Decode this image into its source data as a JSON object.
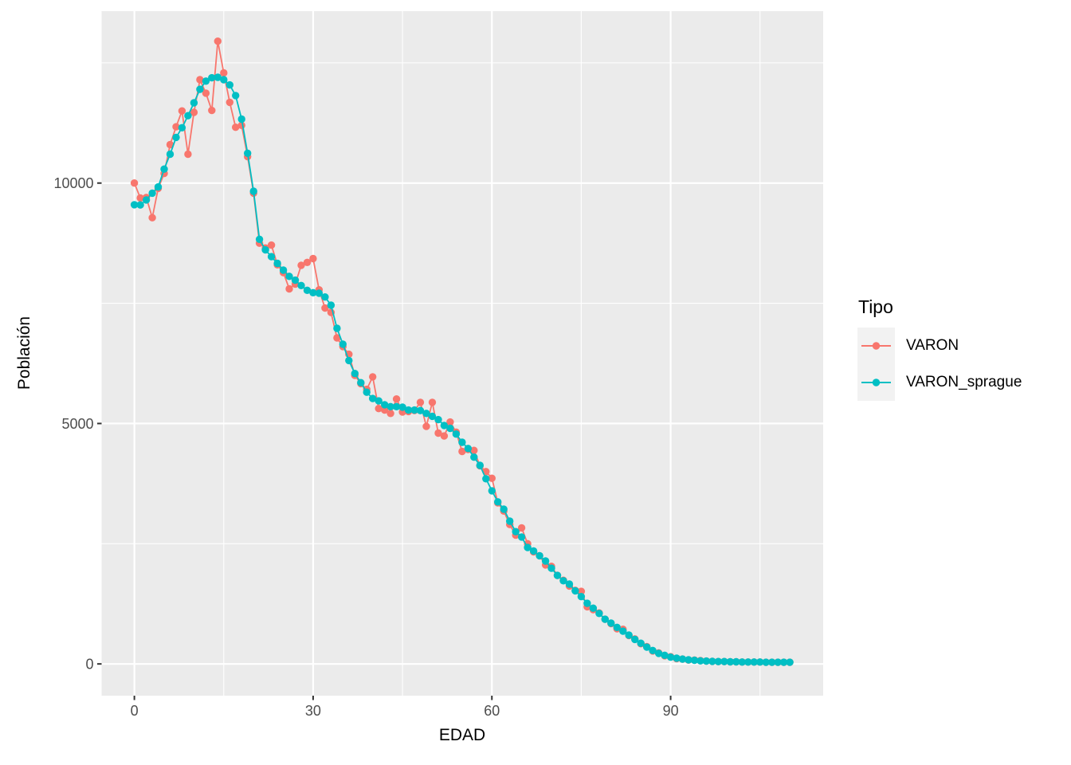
{
  "style": {
    "page_bg": "#FFFFFF",
    "panel_bg": "#EBEBEB",
    "grid_color": "#FFFFFF",
    "tick_color": "#333333",
    "tick_label_color": "#4D4D4D",
    "axis_title_color": "#000000",
    "legend_key_bg": "#F2F2F2"
  },
  "legend": {
    "title": "Tipo",
    "entries": [
      {
        "label": "VARON",
        "color": "#F8766D"
      },
      {
        "label": "VARON_sprague",
        "color": "#00BFC4"
      }
    ]
  },
  "chart_data": {
    "type": "line",
    "title": "",
    "xlabel": "EDAD",
    "ylabel": "Población",
    "legend_title": "Tipo",
    "legend_position": "right",
    "grid": true,
    "x_ticks": [
      0,
      30,
      60,
      90
    ],
    "x_minor_ticks": [
      15,
      45,
      75,
      105
    ],
    "y_ticks": [
      0,
      5000,
      10000
    ],
    "y_minor_ticks": [
      2500,
      7500,
      12500
    ],
    "xlim": [
      -5.5,
      115.6
    ],
    "ylim": [
      -660,
      13575
    ],
    "x": [
      0,
      1,
      2,
      3,
      4,
      5,
      6,
      7,
      8,
      9,
      10,
      11,
      12,
      13,
      14,
      15,
      16,
      17,
      18,
      19,
      20,
      21,
      22,
      23,
      24,
      25,
      26,
      27,
      28,
      29,
      30,
      31,
      32,
      33,
      34,
      35,
      36,
      37,
      38,
      39,
      40,
      41,
      42,
      43,
      44,
      45,
      46,
      47,
      48,
      49,
      50,
      51,
      52,
      53,
      54,
      55,
      56,
      57,
      58,
      59,
      60,
      61,
      62,
      63,
      64,
      65,
      66,
      67,
      68,
      69,
      70,
      71,
      72,
      73,
      74,
      75,
      76,
      77,
      78,
      79,
      80,
      81,
      82,
      83,
      84,
      85,
      86,
      87,
      88,
      89,
      90,
      91,
      92,
      93,
      94,
      95,
      96,
      97,
      98,
      99,
      100,
      101,
      102,
      103,
      104,
      105,
      106,
      107,
      108,
      109,
      110
    ],
    "series": [
      {
        "name": "VARON",
        "color": "#F8766D",
        "values": [
          10000,
          9690,
          9700,
          9280,
          9890,
          10200,
          10800,
          11170,
          11500,
          10600,
          11470,
          12150,
          11870,
          11510,
          12950,
          12290,
          11680,
          11160,
          11200,
          10550,
          9790,
          8750,
          8650,
          8710,
          8300,
          8140,
          7800,
          7900,
          8290,
          8350,
          8430,
          7780,
          7400,
          7310,
          6780,
          6600,
          6440,
          6000,
          5830,
          5710,
          5970,
          5310,
          5280,
          5210,
          5510,
          5240,
          5250,
          5270,
          5440,
          4940,
          5440,
          4800,
          4740,
          5030,
          4820,
          4420,
          4460,
          4440,
          4120,
          4000,
          3860,
          3350,
          3180,
          2900,
          2680,
          2830,
          2500,
          2330,
          2250,
          2060,
          2030,
          1840,
          1740,
          1620,
          1530,
          1510,
          1190,
          1130,
          1060,
          930,
          840,
          730,
          720,
          590,
          520,
          420,
          360,
          270,
          230,
          170,
          150,
          110,
          100,
          80,
          80,
          70,
          60,
          55,
          50,
          50,
          45,
          45,
          40,
          40,
          40,
          40,
          35,
          35,
          35,
          35,
          35
        ]
      },
      {
        "name": "VARON_sprague",
        "color": "#00BFC4",
        "values": [
          9550,
          9545,
          9650,
          9790,
          9920,
          10290,
          10600,
          10950,
          11150,
          11400,
          11670,
          11950,
          12120,
          12190,
          12200,
          12150,
          12040,
          11820,
          11330,
          10620,
          9830,
          8830,
          8610,
          8470,
          8330,
          8190,
          8060,
          7980,
          7870,
          7770,
          7720,
          7710,
          7630,
          7460,
          6980,
          6650,
          6310,
          6040,
          5850,
          5650,
          5520,
          5470,
          5390,
          5350,
          5350,
          5340,
          5280,
          5280,
          5270,
          5210,
          5150,
          5080,
          4960,
          4900,
          4780,
          4610,
          4480,
          4300,
          4130,
          3850,
          3600,
          3370,
          3220,
          2970,
          2750,
          2640,
          2420,
          2350,
          2250,
          2140,
          1990,
          1840,
          1730,
          1660,
          1520,
          1400,
          1260,
          1160,
          1050,
          930,
          850,
          760,
          680,
          600,
          510,
          430,
          350,
          280,
          220,
          180,
          140,
          120,
          100,
          85,
          75,
          65,
          60,
          55,
          50,
          50,
          45,
          45,
          40,
          40,
          40,
          40,
          35,
          35,
          35,
          35,
          35
        ]
      }
    ]
  }
}
